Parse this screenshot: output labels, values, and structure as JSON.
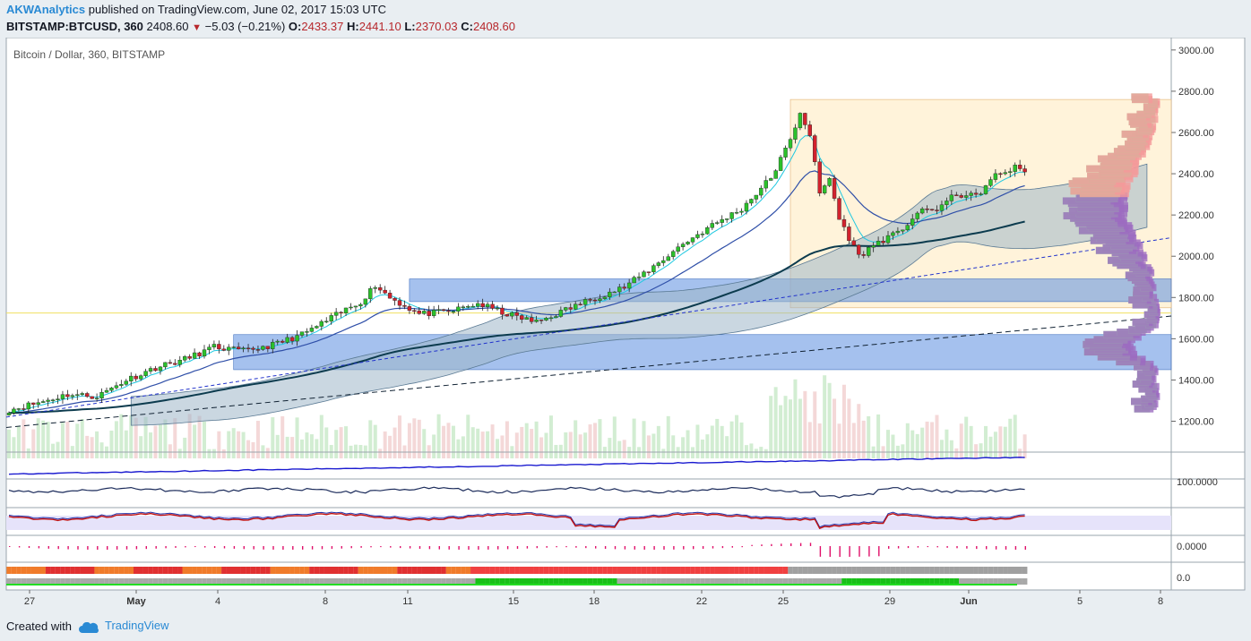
{
  "header": {
    "author": "AKWAnalytics",
    "published_text": "published on TradingView.com, June 02, 2017 15:03 UTC",
    "symbol": "BITSTAMP:BTCUSD, 360",
    "last": "2408.60",
    "change": "−5.03 (−0.21%)",
    "o_label": "O:",
    "o_value": "2433.37",
    "h_label": "H:",
    "h_value": "2441.10",
    "l_label": "L:",
    "l_value": "2370.03",
    "c_label": "C:",
    "c_value": "2408.60"
  },
  "footer": {
    "created_with": "Created with",
    "brand": "TradingView"
  },
  "icons": {
    "tradingview_logo": "cloud-logo-icon",
    "down_arrow": "down-triangle-icon"
  },
  "colors": {
    "up": "#2bc12b",
    "down": "#d2222d",
    "accent": "#2a8ad4"
  },
  "chart_data": {
    "type": "candlestick",
    "title": "Bitcoin / Dollar, 360, BITSTAMP",
    "price_axis": {
      "ticks": [
        "3000.00",
        "2800.00",
        "2600.00",
        "2400.00",
        "2200.00",
        "2000.00",
        "1800.00",
        "1600.00",
        "1400.00",
        "1200.00"
      ],
      "min": 1020,
      "max": 3060
    },
    "time_axis": {
      "ticks": [
        "27",
        "May",
        "4",
        "8",
        "11",
        "15",
        "18",
        "22",
        "25",
        "29",
        "Jun",
        "5",
        "8"
      ]
    },
    "indicator_labels": [
      "100.0000",
      "0.0000",
      "0.0"
    ],
    "close_path": [
      [
        0,
        1255
      ],
      [
        6,
        1290
      ],
      [
        12,
        1330
      ],
      [
        18,
        1320
      ],
      [
        24,
        1400
      ],
      [
        30,
        1460
      ],
      [
        36,
        1500
      ],
      [
        42,
        1560
      ],
      [
        48,
        1540
      ],
      [
        54,
        1570
      ],
      [
        60,
        1620
      ],
      [
        66,
        1700
      ],
      [
        72,
        1780
      ],
      [
        75,
        1860
      ],
      [
        78,
        1800
      ],
      [
        84,
        1720
      ],
      [
        90,
        1730
      ],
      [
        96,
        1770
      ],
      [
        102,
        1720
      ],
      [
        108,
        1680
      ],
      [
        114,
        1740
      ],
      [
        120,
        1800
      ],
      [
        126,
        1850
      ],
      [
        132,
        1950
      ],
      [
        138,
        2060
      ],
      [
        144,
        2150
      ],
      [
        150,
        2230
      ],
      [
        156,
        2380
      ],
      [
        160,
        2560
      ],
      [
        162,
        2700
      ],
      [
        164,
        2590
      ],
      [
        166,
        2300
      ],
      [
        168,
        2380
      ],
      [
        170,
        2180
      ],
      [
        174,
        2000
      ],
      [
        178,
        2070
      ],
      [
        182,
        2110
      ],
      [
        186,
        2210
      ],
      [
        190,
        2230
      ],
      [
        194,
        2300
      ],
      [
        198,
        2290
      ],
      [
        202,
        2390
      ],
      [
        206,
        2430
      ],
      [
        208,
        2408.6
      ]
    ],
    "zones": [
      {
        "from": 1750,
        "to": 2760,
        "start": 160,
        "color": "#fff2d6"
      },
      {
        "from": 1780,
        "to": 1890,
        "start": 82,
        "color": "#5b8ee0"
      },
      {
        "from": 1450,
        "to": 1620,
        "start": 46,
        "color": "#5b8ee0"
      }
    ]
  }
}
